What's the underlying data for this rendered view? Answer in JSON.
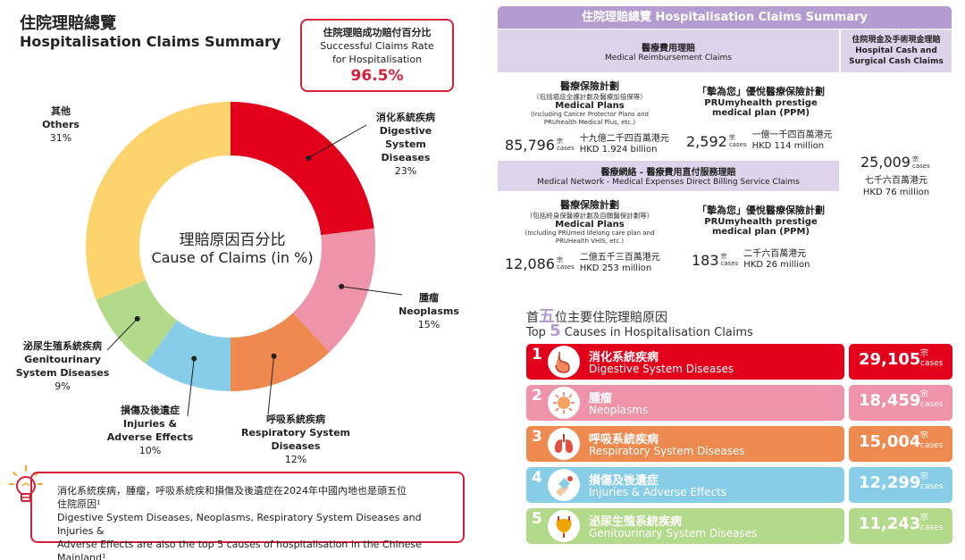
{
  "title": {
    "zh": "住院理賠總覽",
    "en": "Hospitalisation Claims Summary"
  },
  "success_rate": {
    "label_zh": "住院理賠成功賠付百分比",
    "label_en_1": "Successful Claims Rate",
    "label_en_2": "for Hospitalisation",
    "value": "96.5%"
  },
  "chart_data": {
    "type": "pie",
    "title": "理賠原因百分比",
    "subtitle": "Cause of Claims (in %)",
    "categories": [
      "消化系統疾病 Digestive System Diseases",
      "腫瘤 Neoplasms",
      "呼吸系統疾病 Respiratory System Diseases",
      "損傷及後遺症 Injuries & Adverse Effects",
      "泌尿生殖系統疾病 Genitourinary System Diseases",
      "其他 Others"
    ],
    "values": [
      23,
      15,
      12,
      10,
      9,
      31
    ],
    "colors": [
      "#e3001b",
      "#ef94a8",
      "#ee8a4f",
      "#87cde8",
      "#b3d98a",
      "#fdd36d"
    ],
    "labels": [
      {
        "zh": "消化系統疾病",
        "en": "Digestive",
        "en2": "System Diseases",
        "pct": "23%"
      },
      {
        "zh": "腫瘤",
        "en": "Neoplasms",
        "en2": "",
        "pct": "15%"
      },
      {
        "zh": "呼吸系統疾病",
        "en": "Respiratory System Diseases",
        "en2": "",
        "pct": "12%"
      },
      {
        "zh": "損傷及後遺症",
        "en": "Injuries &",
        "en2": "Adverse Effects",
        "pct": "10%"
      },
      {
        "zh": "泌尿生殖系統疾病",
        "en": "Genitourinary",
        "en2": "System Diseases",
        "pct": "9%"
      },
      {
        "zh": "其他",
        "en": "Others",
        "en2": "",
        "pct": "31%"
      }
    ]
  },
  "note": {
    "zh_1": "消化系統疾病，腫瘤，呼吸系統疾和損傷及後遺症在2024年中國內地也是頭五位",
    "zh_2": "住院原因¹",
    "en_1": "Digestive System  Diseases, Neoplasms, Respiratory System Diseases and Injuries &",
    "en_2": "Adverse Effects are also the top 5 causes of hospitalisation in the Chinese Mainland¹"
  },
  "summary": {
    "header": "住院理賠總覽 Hospitalisation Claims Summary",
    "reimb": {
      "zh": "醫療費用理賠",
      "en": "Medical Reimbursement Claims"
    },
    "cash": {
      "zh": "住院現金及手術現金理賠",
      "en_1": "Hospital Cash and",
      "en_2": "Surgical Cash Claims",
      "count": "25,009",
      "unit_zh": "宗",
      "unit_en": "cases",
      "amt_zh": "七千六百萬港元",
      "amt_en": "HKD 76 million"
    },
    "network": {
      "zh": "醫療網絡 - 醫療費用直付服務理賠",
      "en": "Medical Network - Medical Expenses Direct Billing Service Claims"
    },
    "r1_medical": {
      "zh": "醫療保險計劃",
      "sub_zh": "（包括癌症全護計劃及醫療加倍保等）",
      "en": "Medical Plans",
      "sub_en_1": "(Including Cancer Protector Plans and",
      "sub_en_2": "PRUhealth Medical Plus, etc.)",
      "count": "85,796",
      "unit_zh": "宗",
      "unit_en": "cases",
      "amt_zh": "十九億二千四百萬港元",
      "amt_en": "HKD 1.924 billion"
    },
    "r1_ppm": {
      "zh": "「摯為您」優悅醫療保險計劃",
      "en_1": "PRUmyhealth prestige",
      "en_2": "medical plan (PPM)",
      "count": "2,592",
      "unit_zh": "宗",
      "unit_en": "cases",
      "amt_zh": "一億一千四百萬港元",
      "amt_en": "HKD 114 million"
    },
    "r2_medical": {
      "zh": "醫療保險計劃",
      "sub_zh": "（包括終身保醫療計劃及自願醫保計劃等）",
      "en": "Medical Plans",
      "sub_en_1": "(Including PRUmed lifelong care plan and",
      "sub_en_2": "PRUHealth VHIS, etc.)",
      "count": "12,086",
      "unit_zh": "宗",
      "unit_en": "cases",
      "amt_zh": "二億五千三百萬港元",
      "amt_en": "HKD 253 million"
    },
    "r2_ppm": {
      "zh": "「摯為您」優悅醫療保險計劃",
      "en_1": "PRUmyhealth prestige",
      "en_2": "medical plan (PPM)",
      "count": "183",
      "unit_zh": "宗",
      "unit_en": "cases",
      "amt_zh": "二千六百萬港元",
      "amt_en": "HKD 26 million"
    }
  },
  "top5": {
    "title_zh_a": "首",
    "title_zh_num": "五",
    "title_zh_b": "位主要住院理賠原因",
    "title_en_a": "Top ",
    "title_en_num": "5",
    "title_en_b": " Causes in Hospitalisation Claims",
    "items": [
      {
        "rank": "1",
        "zh": "消化系統疾病",
        "en": "Digestive System Diseases",
        "count": "29,105",
        "unit_zh": "宗",
        "unit_en": "cases",
        "color": "#e3001b",
        "icon": "stomach-icon"
      },
      {
        "rank": "2",
        "zh": "腫瘤",
        "en": "Neoplasms",
        "count": "18,459",
        "unit_zh": "宗",
        "unit_en": "cases",
        "color": "#ef94a8",
        "icon": "cell-icon"
      },
      {
        "rank": "3",
        "zh": "呼吸系統疾病",
        "en": "Respiratory System Diseases",
        "count": "15,004",
        "unit_zh": "宗",
        "unit_en": "cases",
        "color": "#ee8a4f",
        "icon": "lungs-icon"
      },
      {
        "rank": "4",
        "zh": "損傷及後遺症",
        "en": "Injuries & Adverse Effects",
        "count": "12,299",
        "unit_zh": "宗",
        "unit_en": "cases",
        "color": "#87cde8",
        "icon": "bandaged-arm-icon"
      },
      {
        "rank": "5",
        "zh": "泌尿生殖系統疾病",
        "en": "Genitourinary System Diseases",
        "count": "11,243",
        "unit_zh": "宗",
        "unit_en": "cases",
        "color": "#b3d98a",
        "icon": "bladder-icon"
      }
    ]
  }
}
